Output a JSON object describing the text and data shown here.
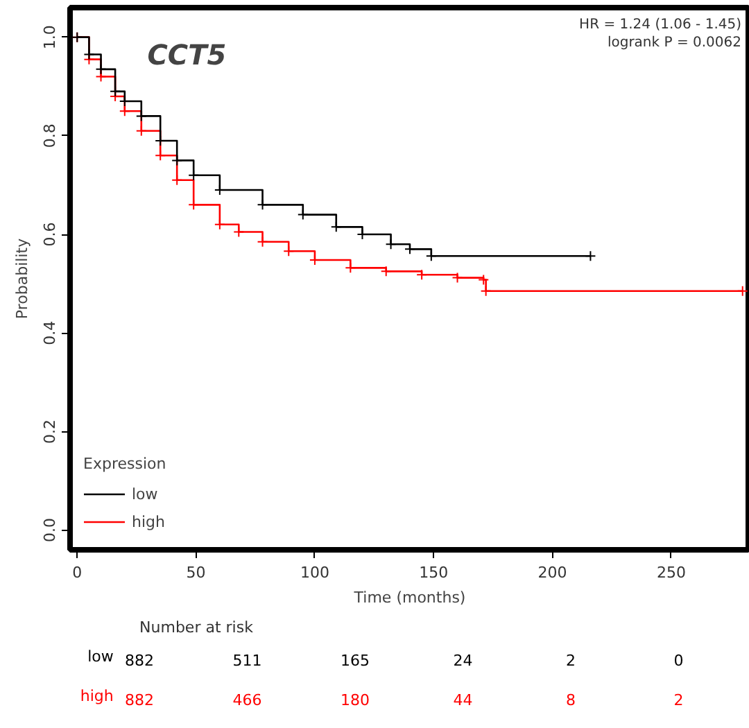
{
  "chart_data": {
    "type": "step",
    "title": "CCT5",
    "xlabel": "Time (months)",
    "ylabel": "Probability",
    "legend_title": "Expression",
    "legend": "bottom left",
    "marker": "cross",
    "grid": false,
    "xlim": [
      -3,
      283
    ],
    "xticks": [
      0,
      50,
      100,
      150,
      200,
      250
    ],
    "ylim": [
      -0.04,
      1.06
    ],
    "yticks": [
      {
        "value": 0,
        "label": "0.0"
      },
      0.2,
      0.4,
      0.6,
      0.8,
      {
        "value": 1,
        "label": "1.0"
      }
    ],
    "series": [
      {
        "name": "low",
        "color": "#000000",
        "x": [
          0,
          5,
          10,
          16,
          20,
          27,
          35,
          42,
          49,
          60,
          78,
          95,
          109,
          120,
          132,
          140,
          149,
          216
        ],
        "values": [
          1,
          0.965,
          0.935,
          0.89,
          0.87,
          0.84,
          0.79,
          0.75,
          0.72,
          0.69,
          0.66,
          0.64,
          0.615,
          0.6,
          0.58,
          0.57,
          0.556,
          0.556
        ]
      },
      {
        "name": "high",
        "color": "#ff0000",
        "x": [
          0,
          5,
          10,
          16,
          20,
          27,
          35,
          42,
          49,
          60,
          68,
          78,
          89,
          100,
          115,
          130,
          145,
          160,
          171,
          172,
          280
        ],
        "values": [
          1,
          0.955,
          0.92,
          0.88,
          0.85,
          0.81,
          0.76,
          0.71,
          0.66,
          0.62,
          0.605,
          0.585,
          0.566,
          0.548,
          0.532,
          0.525,
          0.518,
          0.512,
          0.508,
          0.485,
          0.485
        ]
      }
    ],
    "annotations": [
      "HR = 1.24 (1.06 - 1.45)",
      "logrank P = 0.0062",
      "Number at risk",
      "low",
      "882",
      "511",
      "165",
      "24",
      "2",
      "0",
      "high",
      "882",
      "466",
      "180",
      "44",
      "8",
      "2"
    ]
  }
}
